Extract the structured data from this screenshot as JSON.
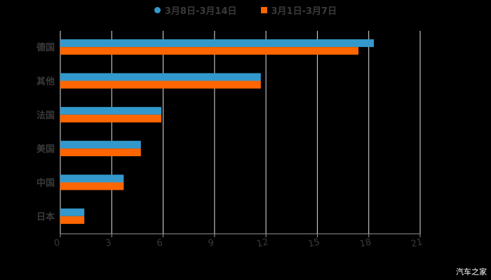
{
  "chart_data": {
    "type": "bar",
    "orientation": "horizontal",
    "title": "",
    "categories": [
      "德国",
      "其他",
      "法国",
      "美国",
      "中国",
      "日本"
    ],
    "series": [
      {
        "name": "3月8日-3月14日",
        "color": "#3399cc",
        "values": [
          18.3,
          11.7,
          5.9,
          4.7,
          3.7,
          1.4
        ]
      },
      {
        "name": "3月1日-3月7日",
        "color": "#ff6600",
        "values": [
          17.4,
          11.7,
          5.9,
          4.7,
          3.7,
          1.4
        ]
      }
    ],
    "xlabel": "",
    "ylabel": "",
    "xlim": [
      0,
      21
    ],
    "xticks": [
      "0",
      "3",
      "6",
      "9",
      "12",
      "15",
      "18",
      "21"
    ],
    "grid": true,
    "legend_position": "top"
  },
  "watermark": "汽车之家"
}
